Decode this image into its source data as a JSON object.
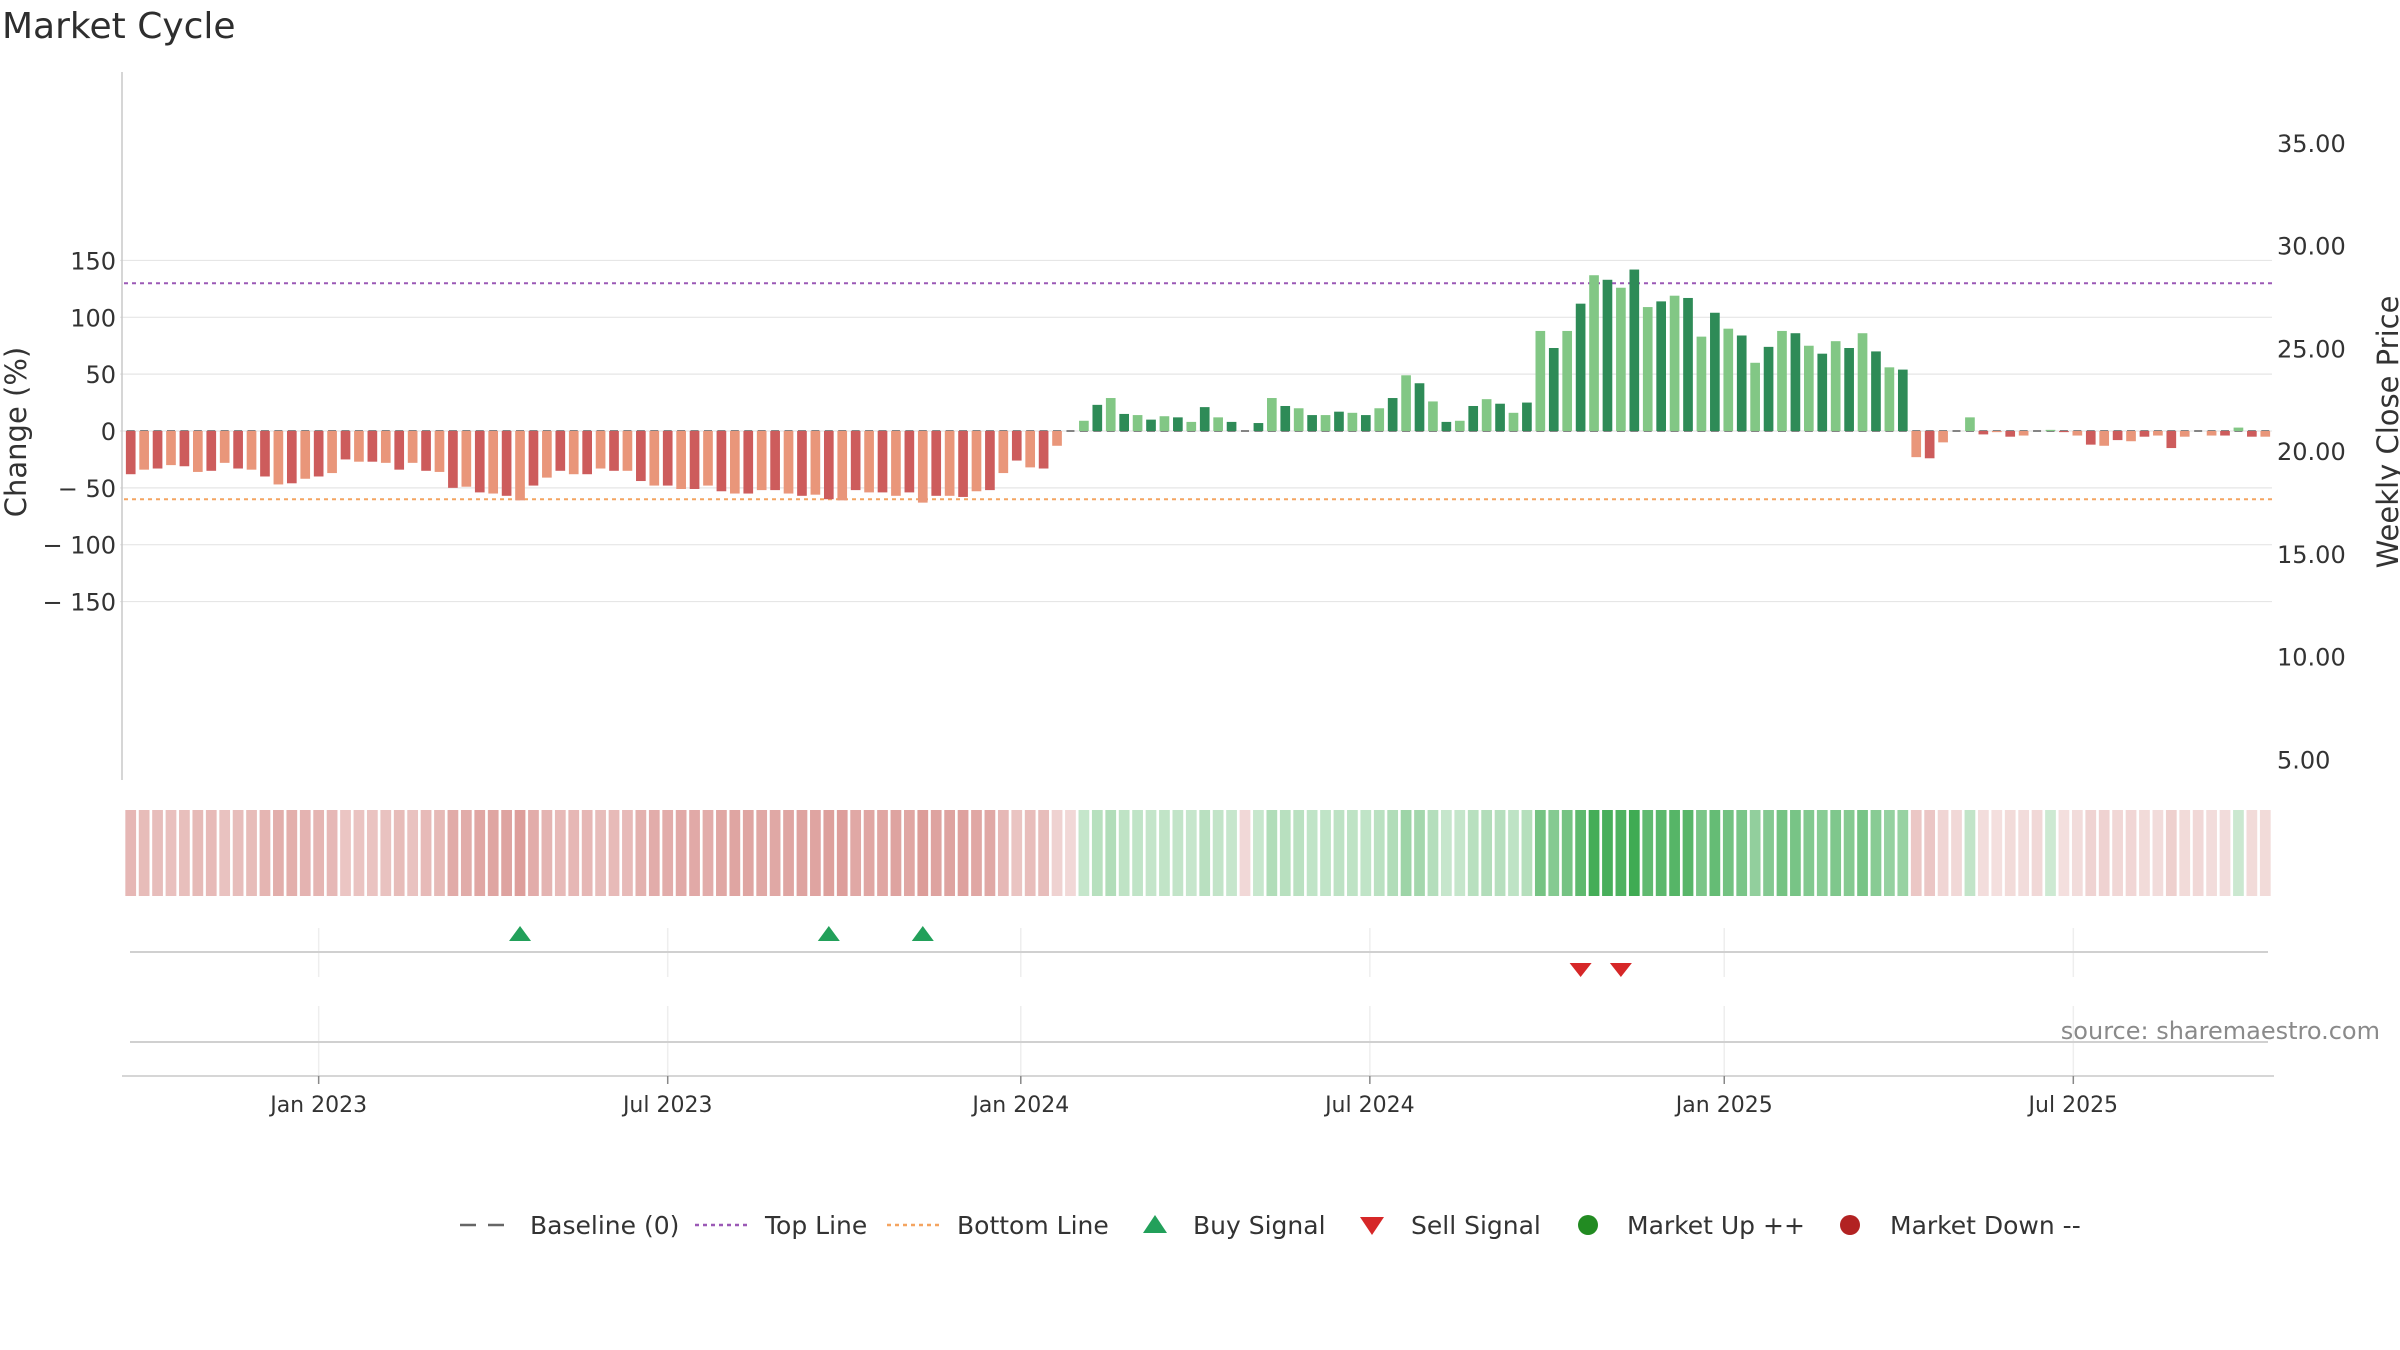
{
  "title": "Market Cycle",
  "source": "source: sharemaestro.com",
  "colors": {
    "up_dark": "#2e8b57",
    "up_light": "#82c785",
    "down_dark": "#cd5c5c",
    "down_light": "#e9967a",
    "top_line": "#9b59b6",
    "bottom_line": "#f4a460",
    "buy": "#22a05a",
    "sell": "#d62728",
    "market_up": "#228b22",
    "market_down": "#b22222"
  },
  "chart_data": {
    "type": "bar",
    "title": "Market Cycle",
    "left_axis": {
      "label": "Change (%)",
      "range": [
        -150,
        150
      ],
      "ticks": [
        "150",
        "100",
        "50",
        "0",
        "− 50",
        "− 100",
        "− 150"
      ],
      "tick_values": [
        150,
        100,
        50,
        0,
        -50,
        -100,
        -150
      ]
    },
    "right_axis": {
      "label": "Weekly Close Price",
      "range": [
        2.5,
        38
      ],
      "ticks": [
        "35.00",
        "30.00",
        "25.00",
        "20.00",
        "15.00",
        "10.00",
        "5.00"
      ],
      "tick_values": [
        35,
        30,
        25,
        20,
        15,
        10,
        5
      ]
    },
    "x_ticks": [
      "Jan 2023",
      "Jul 2023",
      "Jan 2024",
      "Jul 2024",
      "Jan 2025",
      "Jul 2025"
    ],
    "x_tick_weeks": [
      14.5,
      40.5,
      66.8,
      92.8,
      119.2,
      145.2
    ],
    "top_line": 130,
    "bottom_line": -60,
    "series": [
      {
        "name": "Change (%)",
        "values": [
          -38,
          -34,
          -33,
          -30,
          -31,
          -36,
          -35,
          -28,
          -33,
          -34,
          -40,
          -47,
          -46,
          -42,
          -40,
          -37,
          -25,
          -27,
          -27,
          -28,
          -34,
          -28,
          -35,
          -36,
          -50,
          -49,
          -54,
          -55,
          -57,
          -61,
          -48,
          -41,
          -35,
          -38,
          -38,
          -33,
          -35,
          -35,
          -44,
          -48,
          -48,
          -51,
          -51,
          -48,
          -53,
          -55,
          -55,
          -52,
          -52,
          -55,
          -57,
          -56,
          -60,
          -61,
          -52,
          -54,
          -54,
          -57,
          -54,
          -63,
          -57,
          -57,
          -58,
          -53,
          -52,
          -37,
          -26,
          -32,
          -33,
          -13,
          0,
          9,
          23,
          29,
          15,
          14,
          10,
          13,
          12,
          8,
          21,
          12,
          8,
          0,
          7,
          29,
          22,
          20,
          14,
          14,
          17,
          16,
          14,
          20,
          29,
          49,
          42,
          26,
          8,
          9,
          22,
          28,
          24,
          16,
          25,
          88,
          73,
          88,
          112,
          137,
          133,
          126,
          142,
          109,
          114,
          119,
          117,
          83,
          104,
          90,
          84,
          60,
          74,
          88,
          86,
          75,
          68,
          79,
          73,
          86,
          70,
          56,
          54,
          -23,
          -24,
          -10,
          0,
          12,
          -3,
          -1,
          -5,
          -4,
          0,
          1,
          -1,
          -4,
          -12,
          -13,
          -8,
          -9,
          -5,
          -4,
          -15,
          -5,
          0,
          -4,
          -4,
          3,
          -5,
          -5
        ]
      }
    ],
    "markers": {
      "buy_signal_weeks": [
        29,
        52,
        59
      ],
      "sell_signal_weeks": [
        108,
        111
      ]
    },
    "legend": [
      {
        "key": "baseline",
        "label": "Baseline (0)"
      },
      {
        "key": "top",
        "label": "Top Line"
      },
      {
        "key": "bottom",
        "label": "Bottom Line"
      },
      {
        "key": "buy",
        "label": "Buy Signal"
      },
      {
        "key": "sell",
        "label": "Sell Signal"
      },
      {
        "key": "up",
        "label": "Market Up ++"
      },
      {
        "key": "down",
        "label": "Market Down --"
      }
    ],
    "legend_placement": "bottom-center",
    "grid": true
  }
}
